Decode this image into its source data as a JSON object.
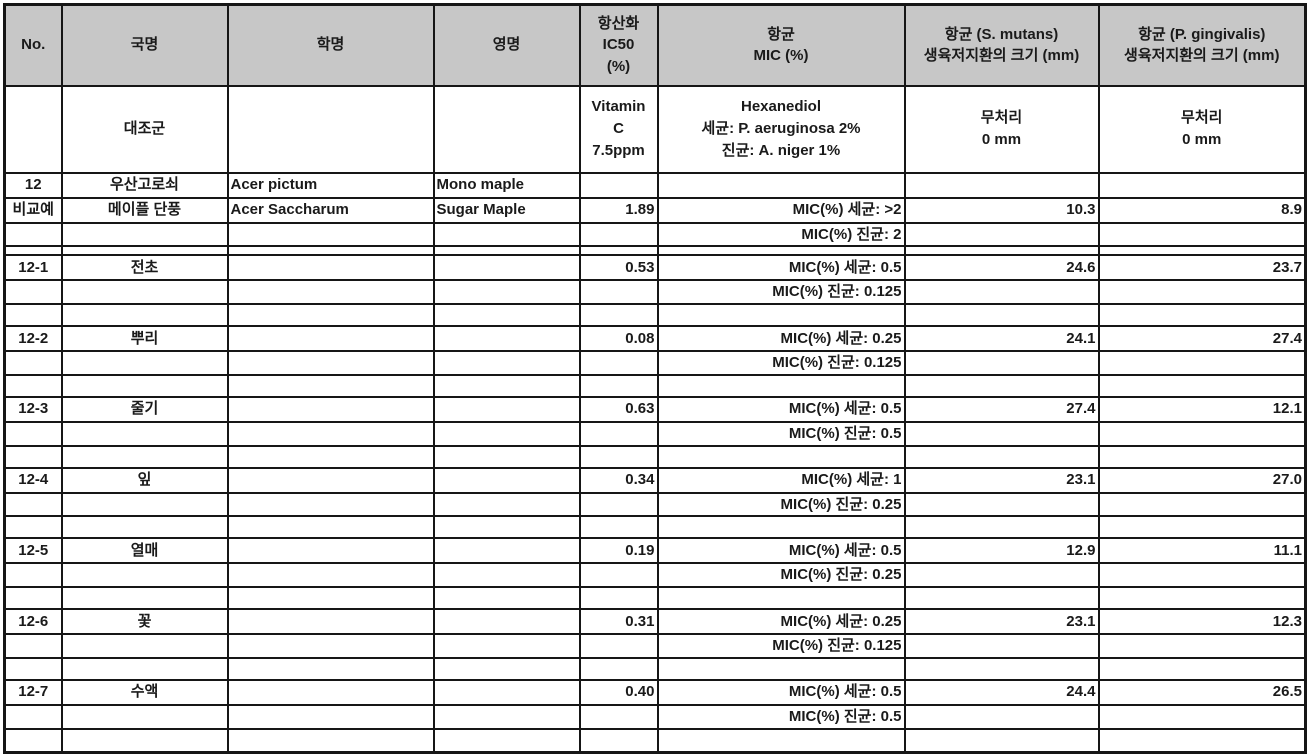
{
  "table": {
    "colors": {
      "header_bg": "#c7c7c7",
      "border": "#161616",
      "text": "#1a1a1a"
    },
    "headers": [
      "No.",
      "국명",
      "학명",
      "영명",
      "항산화\nIC50\n(%)",
      "항균\nMIC (%)",
      "항균 (S. mutans)\n생육저지환의 크기 (mm)",
      "항균 (P. gingivalis)\n생육저지환의 크기 (mm)"
    ],
    "control": {
      "no": "",
      "kname": "대조군",
      "sname": "",
      "ename": "",
      "ic50": "Vitamin\nC\n7.5ppm",
      "mic": "Hexanediol\n세균: P. aeruginosa 2%\n진균: A. niger 1%",
      "mutans": "무처리\n0 mm",
      "gingivalis": "무처리\n0 mm"
    },
    "rows": [
      {
        "kind": "main",
        "cells": [
          "12",
          "우산고로쇠",
          "Acer pictum",
          "Mono maple",
          "",
          "",
          "",
          ""
        ]
      },
      {
        "kind": "main",
        "cells": [
          "비교예",
          "메이플 단풍",
          "Acer Saccharum",
          "Sugar Maple",
          "1.89",
          "MIC(%) 세균: >2",
          "10.3",
          "8.9"
        ]
      },
      {
        "kind": "sub",
        "cells": [
          "",
          "",
          "",
          "",
          "",
          "MIC(%) 진균: 2",
          "",
          ""
        ]
      },
      {
        "kind": "thin",
        "cells": [
          "",
          "",
          "",
          "",
          "",
          "",
          "",
          ""
        ]
      },
      {
        "kind": "main",
        "cells": [
          "12-1",
          "전초",
          "",
          "",
          "0.53",
          "MIC(%) 세균: 0.5",
          "24.6",
          "23.7"
        ]
      },
      {
        "kind": "sub",
        "cells": [
          "",
          "",
          "",
          "",
          "",
          "MIC(%) 진균: 0.125",
          "",
          ""
        ]
      },
      {
        "kind": "blank",
        "cells": [
          "",
          "",
          "",
          "",
          "",
          "",
          "",
          ""
        ]
      },
      {
        "kind": "main",
        "cells": [
          "12-2",
          "뿌리",
          "",
          "",
          "0.08",
          "MIC(%) 세균: 0.25",
          "24.1",
          "27.4"
        ]
      },
      {
        "kind": "sub",
        "cells": [
          "",
          "",
          "",
          "",
          "",
          "MIC(%) 진균: 0.125",
          "",
          ""
        ]
      },
      {
        "kind": "blank",
        "cells": [
          "",
          "",
          "",
          "",
          "",
          "",
          "",
          ""
        ]
      },
      {
        "kind": "main",
        "cells": [
          "12-3",
          "줄기",
          "",
          "",
          "0.63",
          "MIC(%) 세균: 0.5",
          "27.4",
          "12.1"
        ]
      },
      {
        "kind": "sub",
        "cells": [
          "",
          "",
          "",
          "",
          "",
          "MIC(%) 진균: 0.5",
          "",
          ""
        ]
      },
      {
        "kind": "blank",
        "cells": [
          "",
          "",
          "",
          "",
          "",
          "",
          "",
          ""
        ]
      },
      {
        "kind": "main",
        "cells": [
          "12-4",
          "잎",
          "",
          "",
          "0.34",
          "MIC(%) 세균: 1",
          "23.1",
          "27.0"
        ]
      },
      {
        "kind": "sub",
        "cells": [
          "",
          "",
          "",
          "",
          "",
          "MIC(%) 진균: 0.25",
          "",
          ""
        ]
      },
      {
        "kind": "blank",
        "cells": [
          "",
          "",
          "",
          "",
          "",
          "",
          "",
          ""
        ]
      },
      {
        "kind": "main",
        "cells": [
          "12-5",
          "열매",
          "",
          "",
          "0.19",
          "MIC(%) 세균: 0.5",
          "12.9",
          "11.1"
        ]
      },
      {
        "kind": "sub",
        "cells": [
          "",
          "",
          "",
          "",
          "",
          "MIC(%) 진균: 0.25",
          "",
          ""
        ]
      },
      {
        "kind": "blank",
        "cells": [
          "",
          "",
          "",
          "",
          "",
          "",
          "",
          ""
        ]
      },
      {
        "kind": "main",
        "cells": [
          "12-6",
          "꽃",
          "",
          "",
          "0.31",
          "MIC(%) 세균: 0.25",
          "23.1",
          "12.3"
        ]
      },
      {
        "kind": "sub",
        "cells": [
          "",
          "",
          "",
          "",
          "",
          "MIC(%) 진균: 0.125",
          "",
          ""
        ]
      },
      {
        "kind": "blank",
        "cells": [
          "",
          "",
          "",
          "",
          "",
          "",
          "",
          ""
        ]
      },
      {
        "kind": "main",
        "cells": [
          "12-7",
          "수액",
          "",
          "",
          "0.40",
          "MIC(%) 세균: 0.5",
          "24.4",
          "26.5"
        ]
      },
      {
        "kind": "sub",
        "cells": [
          "",
          "",
          "",
          "",
          "",
          "MIC(%) 진균: 0.5",
          "",
          ""
        ]
      },
      {
        "kind": "last",
        "cells": [
          "",
          "",
          "",
          "",
          "",
          "",
          "",
          ""
        ]
      }
    ]
  }
}
